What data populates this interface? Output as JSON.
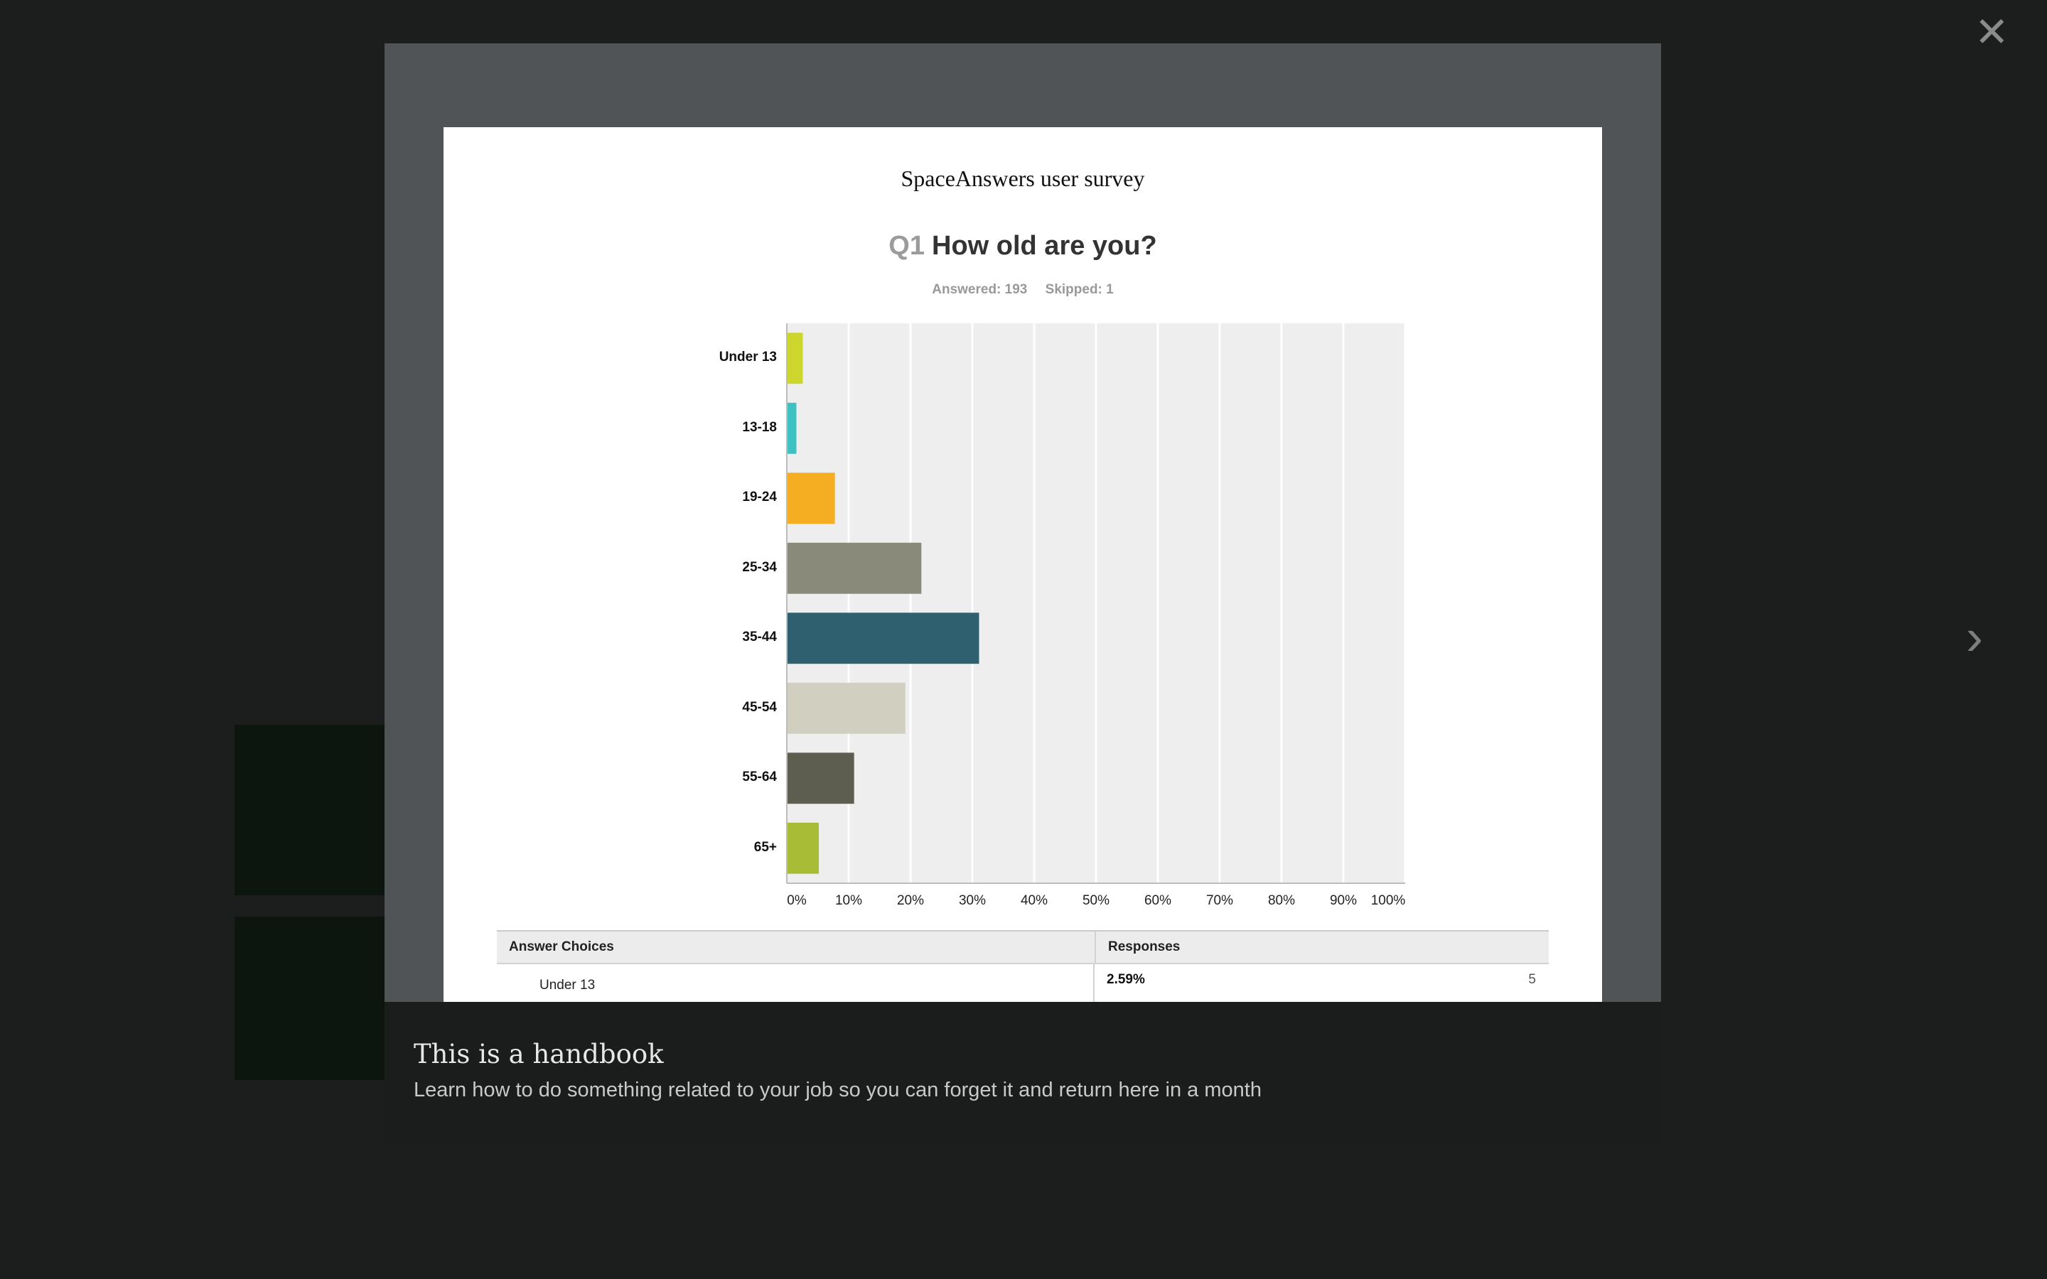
{
  "controls": {
    "close_glyph": "✕",
    "next_glyph": "›"
  },
  "document": {
    "title": "SpaceAnswers user survey",
    "question_number": "Q1",
    "question_text": "How old are you?",
    "answered": "Answered: 193",
    "skipped": "Skipped: 1"
  },
  "chart_data": {
    "type": "bar",
    "orientation": "horizontal",
    "categories": [
      "Under 13",
      "13-18",
      "19-24",
      "25-34",
      "35-44",
      "45-54",
      "55-64",
      "65+"
    ],
    "values": [
      2.59,
      1.55,
      7.77,
      21.76,
      31.09,
      19.17,
      10.88,
      5.18
    ],
    "colors": [
      "#cdd62d",
      "#3ec2c1",
      "#f5ad22",
      "#8a8a7a",
      "#2f6070",
      "#d0cfc0",
      "#5d5d50",
      "#a8bd35"
    ],
    "xlim": [
      0,
      100
    ],
    "x_ticks": [
      "0%",
      "10%",
      "20%",
      "30%",
      "40%",
      "50%",
      "60%",
      "70%",
      "80%",
      "90%",
      "100%"
    ],
    "grid": true,
    "plot_background": "#eeeeee"
  },
  "table": {
    "headers": [
      "Answer Choices",
      "Responses"
    ],
    "rows": [
      {
        "choice": "Under 13",
        "percent": "2.59%",
        "count": "5"
      }
    ]
  },
  "caption": {
    "title": "This is a handbook",
    "description": "Learn how to do something related to your job so you can forget it and return here in a month"
  },
  "colors": {
    "backdrop": "#1c1e1d",
    "modal": "#505457",
    "caption_bar": "#1b1c1c"
  }
}
